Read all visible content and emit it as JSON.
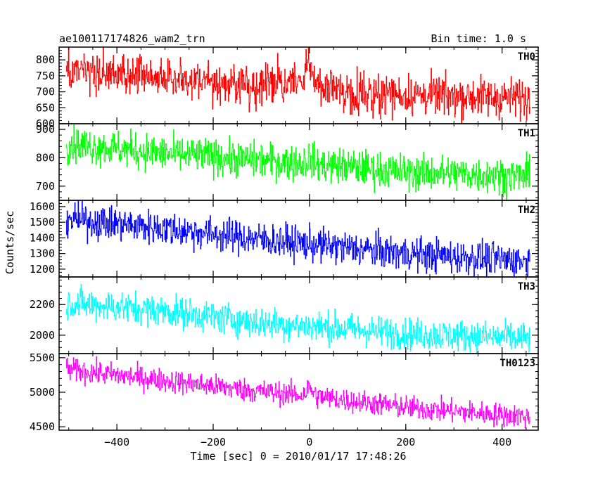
{
  "chart_data": {
    "type": "line",
    "title": "ae100117174826_wam2_trn",
    "subtitle": "Bin time: 1.0 s",
    "xlabel": "Time [sec] 0 = 2010/01/17 17:48:26",
    "ylabel": "Counts/sec",
    "xlim": [
      -520,
      475
    ],
    "x_range_data": [
      -505,
      458
    ],
    "x_ticks": [
      -400,
      -200,
      0,
      200,
      400
    ],
    "grid": false,
    "series": [
      {
        "name": "TH0",
        "color": "#ff0000",
        "ylim": [
          600,
          840
        ],
        "y_ticks": [
          600,
          650,
          700,
          750,
          800
        ],
        "trend": [
          [
            -505,
            760
          ],
          [
            -300,
            745
          ],
          [
            -100,
            720
          ],
          [
            0,
            735
          ],
          [
            60,
            700
          ],
          [
            200,
            690
          ],
          [
            458,
            680
          ]
        ],
        "noise": 32,
        "feature": {
          "x": 0,
          "dy": 45
        }
      },
      {
        "name": "TH1",
        "color": "#00ff00",
        "ylim": [
          650,
          920
        ],
        "y_ticks": [
          700,
          800,
          900
        ],
        "trend": [
          [
            -505,
            850
          ],
          [
            -300,
            815
          ],
          [
            -100,
            790
          ],
          [
            0,
            780
          ],
          [
            200,
            750
          ],
          [
            458,
            735
          ]
        ],
        "noise": 32,
        "feature": {
          "x": 0,
          "dy": 20
        }
      },
      {
        "name": "TH2",
        "color": "#0000ff",
        "ylim": [
          1150,
          1640
        ],
        "y_ticks": [
          1200,
          1300,
          1400,
          1500,
          1600
        ],
        "trend": [
          [
            -505,
            1520
          ],
          [
            -300,
            1460
          ],
          [
            -100,
            1390
          ],
          [
            0,
            1360
          ],
          [
            200,
            1300
          ],
          [
            458,
            1250
          ]
        ],
        "noise": 55,
        "feature": {
          "x": 0,
          "dy": 0
        }
      },
      {
        "name": "TH3",
        "color": "#00ffff",
        "ylim": [
          1880,
          2380
        ],
        "y_ticks": [
          2000,
          2200
        ],
        "trend": [
          [
            -505,
            2210
          ],
          [
            -300,
            2160
          ],
          [
            -100,
            2080
          ],
          [
            0,
            2060
          ],
          [
            200,
            2010
          ],
          [
            458,
            1980
          ]
        ],
        "noise": 52,
        "feature": {
          "x": 0,
          "dy": 0
        }
      },
      {
        "name": "TH0123",
        "color": "#ff00ff",
        "ylim": [
          4450,
          5560
        ],
        "y_ticks": [
          4500,
          5000,
          5500
        ],
        "trend": [
          [
            -505,
            5330
          ],
          [
            -300,
            5170
          ],
          [
            -100,
            5010
          ],
          [
            0,
            4950
          ],
          [
            200,
            4780
          ],
          [
            458,
            4640
          ]
        ],
        "noise": 85,
        "feature": {
          "x": 0,
          "dy": 110
        }
      }
    ]
  }
}
